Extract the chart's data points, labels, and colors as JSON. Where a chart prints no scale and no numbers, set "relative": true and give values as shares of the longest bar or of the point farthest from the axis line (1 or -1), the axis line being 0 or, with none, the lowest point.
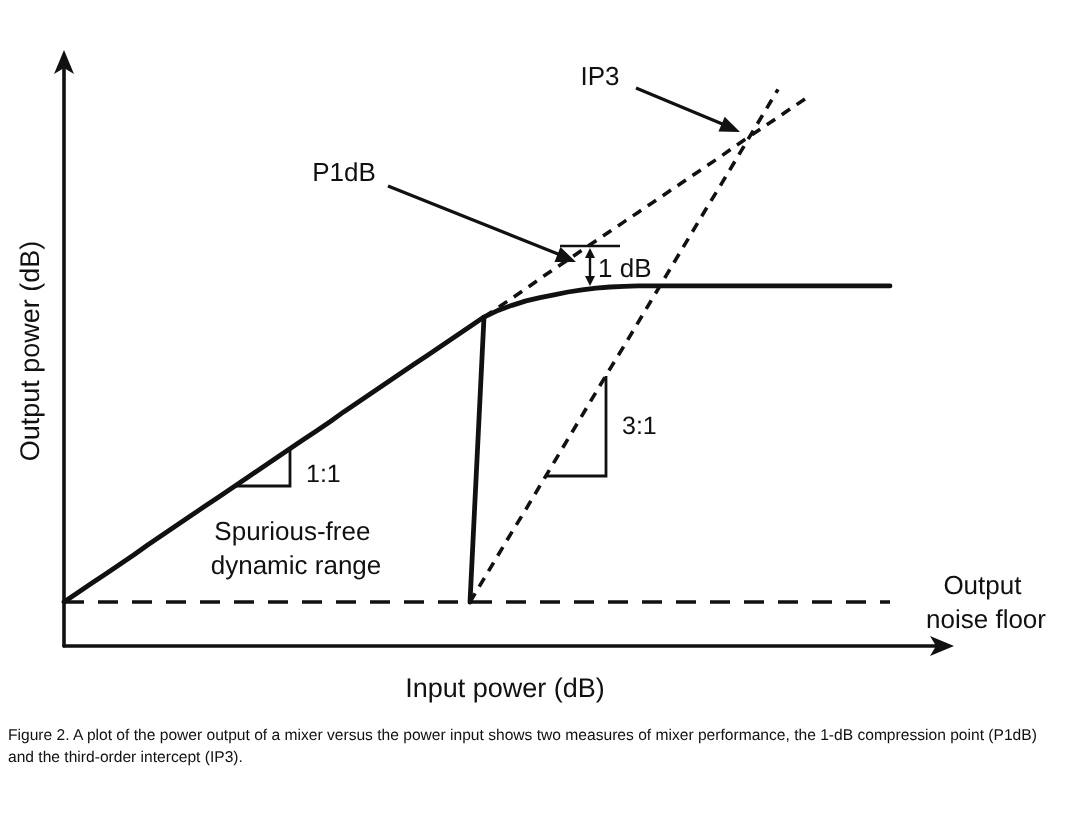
{
  "chart_data": {
    "type": "line",
    "relative": true,
    "xlabel": "Input power (dB)",
    "ylabel": "Output power (dB)",
    "categories": [
      null,
      null,
      null,
      null,
      null,
      null,
      null,
      null,
      null,
      null,
      null,
      null,
      null,
      null,
      null,
      null,
      null,
      null,
      null,
      null,
      null,
      null,
      null,
      null,
      null,
      null,
      null,
      null,
      null,
      null,
      null,
      null,
      null,
      null,
      null,
      null,
      null,
      null,
      null,
      null,
      null,
      null,
      null,
      null,
      null,
      null,
      null,
      null,
      null,
      null,
      null,
      null,
      null,
      null,
      null,
      null,
      null,
      null,
      null,
      null,
      null,
      null,
      null,
      null
    ],
    "series": [
      {
        "color": "#111111",
        "line_style": "solid",
        "values": [
          0.079,
          0.096,
          0.113,
          0.13,
          0.147,
          0.164,
          0.182,
          0.199,
          0.216,
          0.233,
          0.25,
          0.267,
          0.284,
          0.301,
          0.318,
          0.335,
          0.352,
          0.369,
          0.386,
          0.403,
          0.421,
          0.438,
          0.455,
          0.472,
          0.489,
          0.506,
          0.523,
          0.54,
          0.557,
          0.574,
          0.591,
          0.603,
          0.612,
          0.62,
          0.626,
          0.631,
          0.636,
          0.64,
          0.643,
          0.645,
          0.646,
          0.647,
          0.647,
          0.647,
          0.647,
          0.647,
          0.647,
          0.647,
          0.647,
          0.647,
          0.647,
          0.647,
          0.647,
          0.647,
          0.647,
          0.647,
          0.647,
          0.647,
          0.647,
          0.647,
          null,
          null,
          null,
          null
        ]
      },
      {
        "color": "#111111",
        "line_style": "solid",
        "values": [
          null,
          null,
          null,
          null,
          null,
          null,
          null,
          null,
          null,
          null,
          null,
          null,
          null,
          null,
          null,
          null,
          null,
          null,
          null,
          null,
          null,
          null,
          null,
          null,
          null,
          null,
          null,
          null,
          null,
          0.079,
          0.591,
          null,
          null,
          null,
          null,
          null,
          null,
          null,
          null,
          null,
          null,
          null,
          null,
          null,
          null,
          null,
          null,
          null,
          null,
          null,
          null,
          null,
          null,
          null,
          null,
          null,
          null,
          null,
          null,
          null,
          null,
          null,
          null,
          null
        ]
      },
      {
        "color": "#111111",
        "line_style": "dashed",
        "values": [
          null,
          null,
          null,
          null,
          null,
          null,
          null,
          null,
          null,
          null,
          null,
          null,
          null,
          null,
          null,
          null,
          null,
          null,
          null,
          null,
          null,
          null,
          null,
          null,
          null,
          null,
          null,
          null,
          null,
          null,
          0.591,
          0.608,
          0.625,
          0.642,
          0.66,
          0.677,
          0.694,
          0.711,
          0.728,
          0.745,
          0.762,
          0.779,
          0.796,
          0.813,
          0.83,
          0.847,
          0.864,
          0.881,
          0.899,
          0.916,
          0.933,
          0.95,
          0.967,
          0.984,
          null,
          null,
          null,
          null,
          null,
          null,
          null,
          null,
          null,
          null
        ]
      },
      {
        "color": "#111111",
        "line_style": "dashed",
        "values": [
          null,
          null,
          null,
          null,
          null,
          null,
          null,
          null,
          null,
          null,
          null,
          null,
          null,
          null,
          null,
          null,
          null,
          null,
          null,
          null,
          null,
          null,
          null,
          null,
          null,
          null,
          null,
          null,
          null,
          0.079,
          0.121,
          0.163,
          0.205,
          0.246,
          0.288,
          0.33,
          0.372,
          0.414,
          0.456,
          0.498,
          0.539,
          0.581,
          0.623,
          0.665,
          0.707,
          0.749,
          0.791,
          0.832,
          0.874,
          0.916,
          0.958,
          1.0,
          null,
          null,
          null,
          null,
          null,
          null,
          null,
          null,
          null,
          null,
          null,
          null
        ]
      }
    ],
    "ref_lines": [
      {
        "axis": "y",
        "value": 0.079,
        "label": "Output noise floor",
        "line_style": "dashed",
        "color": "#111111"
      }
    ],
    "annotations": [
      "IP3",
      "P1dB",
      "1 dB",
      "1:1",
      "3:1",
      "Spurious-free dynamic range",
      "Figure 2. A plot of the power output of a mixer versus the power input shows two measures of mixer performance, the 1-dB compression point (P1dB) and the third-order intercept (IP3)."
    ],
    "marker": "none",
    "grid": false
  }
}
